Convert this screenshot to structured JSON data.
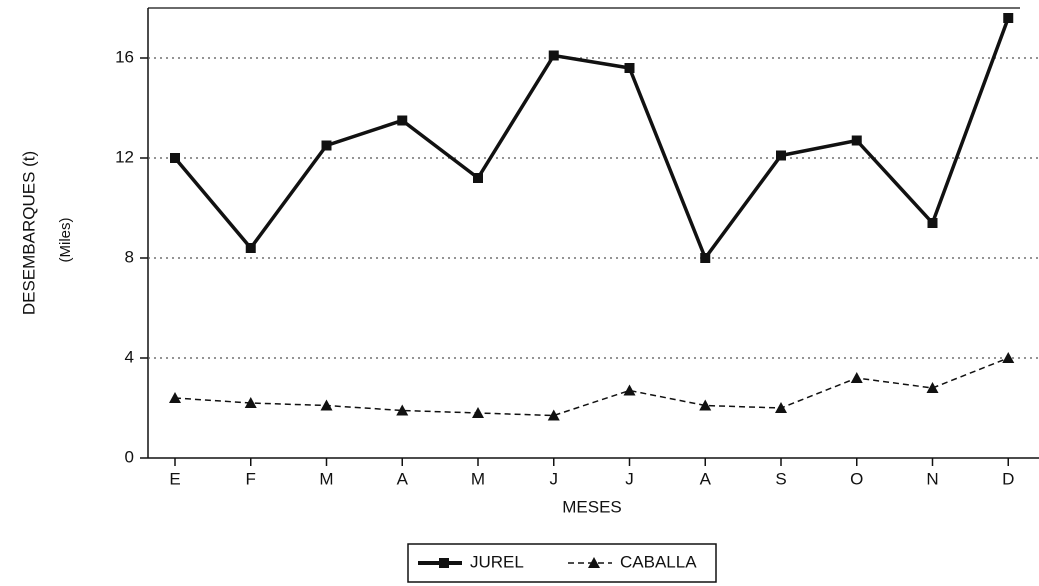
{
  "chart_data": {
    "type": "line",
    "x_label": "MESES",
    "y_label": "DESEMBARQUES (t)",
    "y_sublabel": "(Miles)",
    "categories": [
      "E",
      "F",
      "M",
      "A",
      "M",
      "J",
      "J",
      "A",
      "S",
      "O",
      "N",
      "D"
    ],
    "series": [
      {
        "name": "JUREL",
        "color": "#111111",
        "marker": "square",
        "dashed": false,
        "values": [
          12.0,
          8.4,
          12.5,
          13.5,
          11.2,
          16.1,
          15.6,
          8.0,
          12.1,
          12.7,
          9.4,
          17.6
        ]
      },
      {
        "name": "CABALLA",
        "color": "#111111",
        "marker": "triangle",
        "dashed": true,
        "values": [
          2.4,
          2.2,
          2.1,
          1.9,
          1.8,
          1.7,
          2.7,
          2.1,
          2.0,
          3.2,
          2.8,
          4.0
        ]
      }
    ],
    "ylim": [
      0,
      18
    ],
    "yticks": [
      0,
      4,
      8,
      12,
      16
    ],
    "grid": true,
    "legend": "bottom"
  }
}
